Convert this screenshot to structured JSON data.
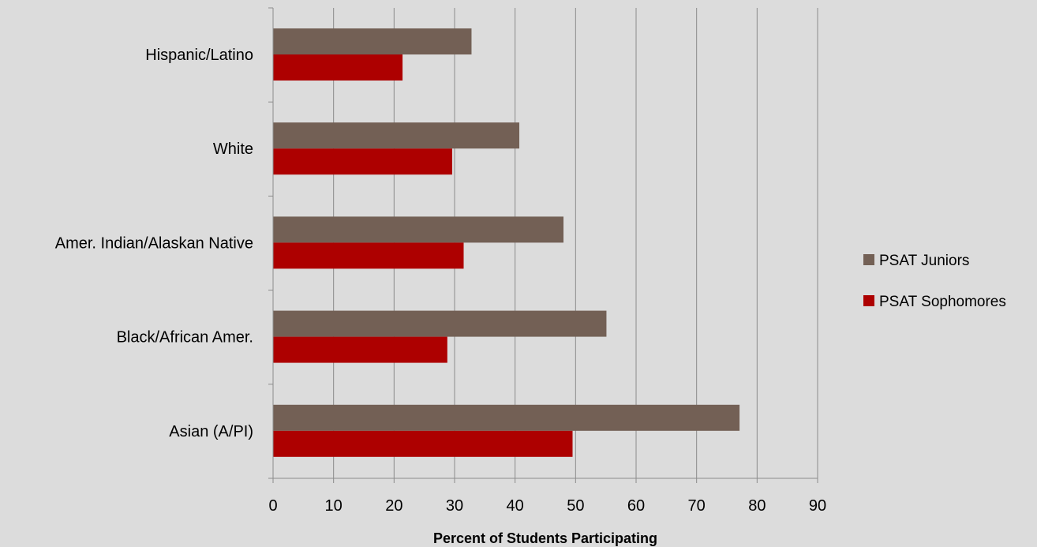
{
  "chart_data": {
    "type": "bar",
    "orientation": "horizontal",
    "categories": [
      "Hispanic/Latino",
      "White",
      "Amer. Indian/Alaskan Native",
      "Black/African Amer.",
      "Asian (A/PI)"
    ],
    "series": [
      {
        "name": "PSAT Juniors",
        "color": "#736055",
        "values": [
          32.8,
          40.7,
          48.0,
          55.1,
          77.1
        ]
      },
      {
        "name": "PSAT Sophomores",
        "color": "#ad0000",
        "values": [
          21.4,
          29.6,
          31.5,
          28.8,
          49.5
        ]
      }
    ],
    "xlabel": "Percent of Students Participating",
    "ylabel": "",
    "xlim": [
      0,
      90
    ],
    "x_ticks": [
      "0",
      "10",
      "20",
      "30",
      "40",
      "50",
      "60",
      "70",
      "80",
      "90"
    ],
    "grid": "vertical",
    "legend": "right"
  }
}
